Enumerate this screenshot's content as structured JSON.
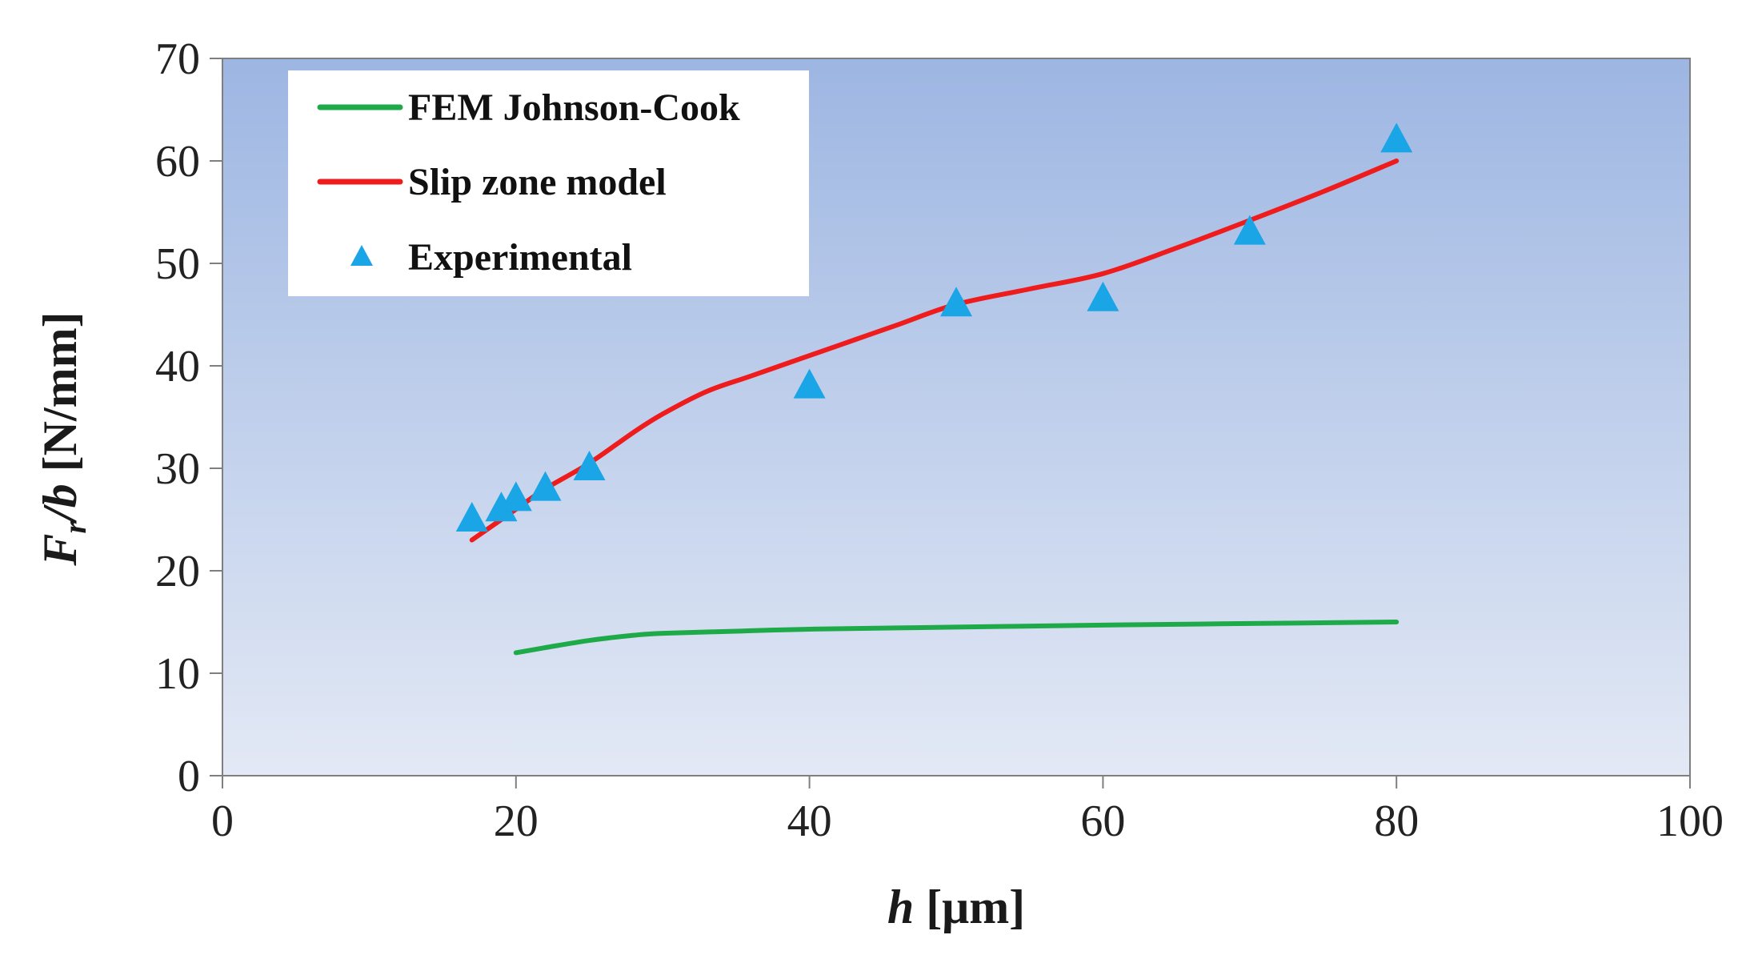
{
  "chart_data": {
    "type": "line",
    "xlabel_italic": "h",
    "xlabel_unit": "[μm]",
    "ylabel_italic_main": "F",
    "ylabel_italic_sub": "r",
    "ylabel_italic_tail": "/b",
    "ylabel_unit": "[N/mm]",
    "xlim": [
      0,
      100
    ],
    "ylim": [
      0,
      70
    ],
    "x_ticks": [
      0,
      20,
      40,
      60,
      80,
      100
    ],
    "y_ticks": [
      0,
      10,
      20,
      30,
      40,
      50,
      60,
      70
    ],
    "grid": false,
    "legend_position": "top-left",
    "series": [
      {
        "name": "FEM Johnson-Cook",
        "kind": "line",
        "color": "#1faa4a",
        "x": [
          20,
          22,
          25,
          28,
          30,
          35,
          40,
          50,
          60,
          70,
          80
        ],
        "y": [
          12.0,
          12.5,
          13.2,
          13.7,
          13.9,
          14.1,
          14.3,
          14.5,
          14.7,
          14.85,
          15.0
        ]
      },
      {
        "name": "Slip zone model",
        "kind": "line",
        "color": "#ee1c1c",
        "x": [
          17,
          20,
          22,
          25,
          28,
          30,
          33,
          36,
          40,
          43,
          46,
          50,
          55,
          60,
          65,
          70,
          75,
          80
        ],
        "y": [
          23.0,
          26.0,
          28.0,
          30.5,
          33.5,
          35.3,
          37.5,
          39.0,
          41.0,
          42.5,
          44.0,
          46.0,
          47.5,
          49.0,
          51.5,
          54.2,
          57.0,
          60.0
        ]
      },
      {
        "name": "Experimental",
        "kind": "scatter",
        "marker": "triangle",
        "color": "#1aa5e6",
        "x": [
          17,
          19,
          20,
          22,
          25,
          40,
          50,
          60,
          70,
          80
        ],
        "y": [
          25.0,
          26.0,
          27.0,
          28.0,
          30.0,
          38.0,
          46.0,
          46.5,
          53.0,
          62.0
        ]
      }
    ]
  }
}
